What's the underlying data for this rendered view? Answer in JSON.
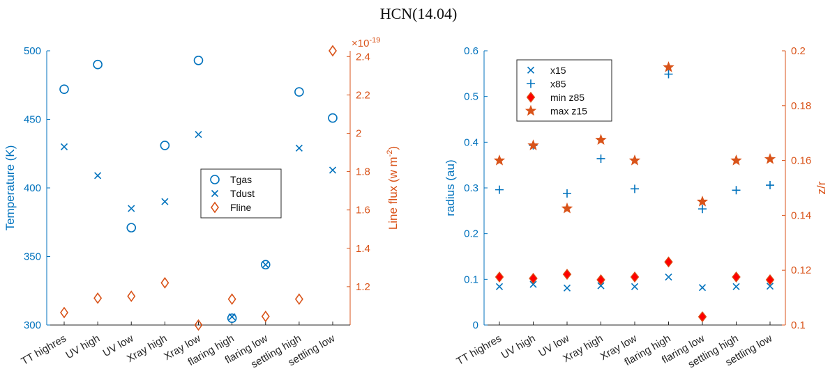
{
  "title": "HCN(14.04)",
  "colors": {
    "blue": "#0072BD",
    "orange": "#D95319",
    "red": "#FF0000",
    "axis": "#262626"
  },
  "chart_data": [
    {
      "type": "scatter",
      "categories": [
        "TT highres",
        "UV high",
        "UV low",
        "Xray high",
        "Xray low",
        "flaring high",
        "flaring low",
        "settling high",
        "settling low"
      ],
      "left_axis": {
        "label": "Temperature (K)",
        "lim": [
          300,
          500
        ],
        "ticks": [
          300,
          350,
          400,
          450,
          500
        ]
      },
      "right_axis": {
        "label_main": "Line flux (w m",
        "label_sup": "-2",
        "label_end": ")",
        "exponent_base": "×10",
        "exponent": "-19",
        "lim": [
          1.0,
          2.43
        ],
        "ticks": [
          1.2,
          1.4,
          1.6,
          1.8,
          2.0,
          2.2,
          2.4
        ],
        "tick_labels": [
          "1.2",
          "1.4",
          "1.6",
          "1.8",
          "2",
          "2.2",
          "2.4"
        ]
      },
      "series": [
        {
          "name": "Tgas",
          "axis": "left",
          "marker": "circle",
          "color": "#0072BD",
          "values": [
            472,
            490,
            371,
            431,
            493,
            305,
            344,
            470,
            451
          ]
        },
        {
          "name": "Tdust",
          "axis": "left",
          "marker": "x",
          "color": "#0072BD",
          "values": [
            430,
            409,
            385,
            390,
            439,
            306,
            344,
            429,
            413
          ]
        },
        {
          "name": "Fline",
          "axis": "right",
          "marker": "diamond",
          "color": "#D95319",
          "values": [
            1.065,
            1.14,
            1.15,
            1.22,
            1.0,
            1.135,
            1.045,
            1.135,
            2.43
          ]
        }
      ],
      "legend_position": "center-right"
    },
    {
      "type": "scatter",
      "categories": [
        "TT highres",
        "UV high",
        "UV low",
        "Xray high",
        "Xray low",
        "flaring high",
        "flaring low",
        "settling high",
        "settling low"
      ],
      "left_axis": {
        "label": "radius (au)",
        "lim": [
          0,
          0.6
        ],
        "ticks": [
          0,
          0.1,
          0.2,
          0.3,
          0.4,
          0.5,
          0.6
        ],
        "tick_labels": [
          "0",
          "0.1",
          "0.2",
          "0.3",
          "0.4",
          "0.5",
          "0.6"
        ]
      },
      "right_axis": {
        "label": "z/r",
        "lim": [
          0.1,
          0.2
        ],
        "ticks": [
          0.1,
          0.12,
          0.14,
          0.16,
          0.18,
          0.2
        ],
        "tick_labels": [
          "0.1",
          "0.12",
          "0.14",
          "0.16",
          "0.18",
          "0.2"
        ]
      },
      "series": [
        {
          "name": "x15",
          "axis": "left",
          "marker": "x",
          "color": "#0072BD",
          "values": [
            0.084,
            0.089,
            0.081,
            0.086,
            0.084,
            0.105,
            0.082,
            0.084,
            0.085
          ]
        },
        {
          "name": "x85",
          "axis": "left",
          "marker": "plus",
          "color": "#0072BD",
          "values": [
            0.296,
            0.393,
            0.288,
            0.364,
            0.298,
            0.549,
            0.254,
            0.295,
            0.306
          ]
        },
        {
          "name": "min z85",
          "axis": "right",
          "marker": "diamond-filled",
          "color": "#FF0000",
          "edge": "#D95319",
          "values": [
            0.1175,
            0.117,
            0.1185,
            0.1165,
            0.1175,
            0.123,
            0.103,
            0.1175,
            0.1165
          ]
        },
        {
          "name": "max z15",
          "axis": "right",
          "marker": "star",
          "color": "#D95319",
          "values": [
            0.16,
            0.1655,
            0.1425,
            0.1675,
            0.16,
            0.194,
            0.145,
            0.16,
            0.1605
          ]
        }
      ],
      "legend_position": "top-left"
    }
  ]
}
